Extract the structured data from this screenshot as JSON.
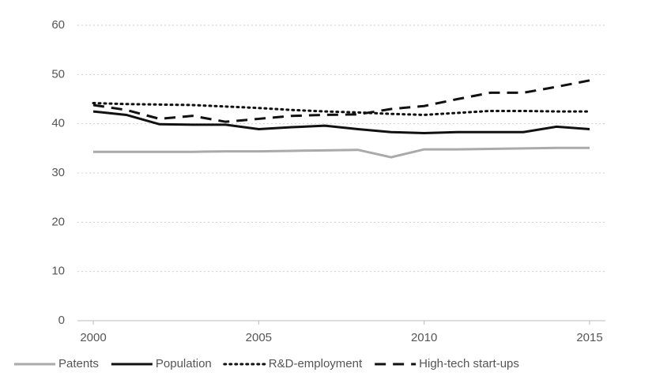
{
  "chart_data": {
    "type": "line",
    "x": [
      2000,
      2001,
      2002,
      2003,
      2004,
      2005,
      2006,
      2007,
      2008,
      2009,
      2010,
      2011,
      2012,
      2013,
      2014,
      2015
    ],
    "xlim": [
      2000,
      2015
    ],
    "xticks": [
      2000,
      2005,
      2010,
      2015
    ],
    "ylim": [
      0,
      60
    ],
    "yticks": [
      0,
      10,
      20,
      30,
      40,
      50,
      60
    ],
    "grid": true,
    "legend": "bottom",
    "series": [
      {
        "name": "Patents",
        "color": "#aaaaaa",
        "dash": "solid",
        "values": [
          34.3,
          34.3,
          34.3,
          34.3,
          34.4,
          34.4,
          34.5,
          34.6,
          34.7,
          33.2,
          34.8,
          34.8,
          34.9,
          35.0,
          35.1,
          35.1
        ]
      },
      {
        "name": "Population",
        "color": "#111111",
        "dash": "solid",
        "values": [
          42.5,
          41.8,
          39.9,
          39.8,
          39.8,
          38.9,
          39.3,
          39.6,
          38.9,
          38.3,
          38.1,
          38.3,
          38.3,
          38.3,
          39.4,
          38.9
        ]
      },
      {
        "name": "R&D-employment",
        "color": "#111111",
        "dash": "dotted",
        "values": [
          44.2,
          44.0,
          43.9,
          43.8,
          43.5,
          43.2,
          42.8,
          42.5,
          42.3,
          42.0,
          41.8,
          42.2,
          42.6,
          42.6,
          42.5,
          42.5
        ]
      },
      {
        "name": "High-tech start-ups",
        "color": "#111111",
        "dash": "dashed",
        "values": [
          43.8,
          42.8,
          41.0,
          41.6,
          40.4,
          41.0,
          41.6,
          41.8,
          41.9,
          43.0,
          43.6,
          45.0,
          46.3,
          46.3,
          47.5,
          48.8
        ]
      }
    ]
  }
}
